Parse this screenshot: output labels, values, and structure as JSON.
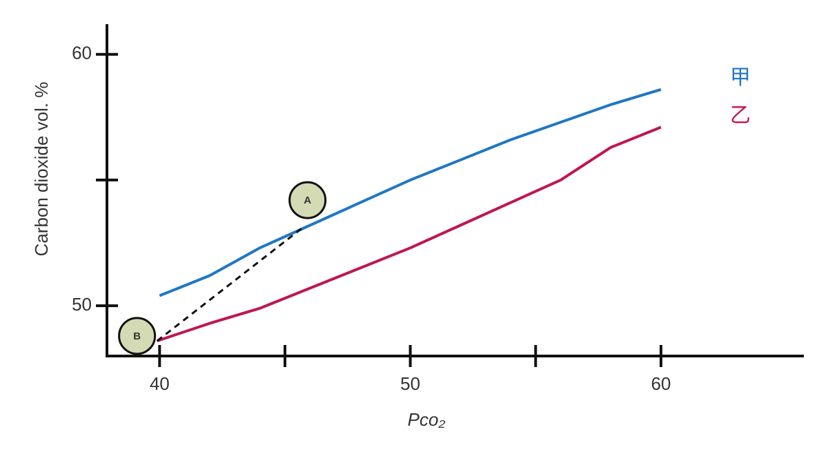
{
  "chart_data": {
    "type": "line",
    "y_label": "Carbon dioxide vol. %",
    "x_label": "Pco₂",
    "xlim": [
      37.9,
      65.7
    ],
    "ylim": [
      48,
      61.2
    ],
    "xticks": [
      40,
      50,
      60
    ],
    "xminorticks": [
      45,
      55
    ],
    "yticks": [
      50,
      60
    ],
    "yminorticks": [
      55
    ],
    "series": [
      {
        "name": "甲",
        "color": "#1f77c4",
        "x": [
          40,
          42,
          44,
          46,
          48,
          50,
          52,
          54,
          56,
          58,
          60
        ],
        "values": [
          50.4,
          51.2,
          52.3,
          53.2,
          54.1,
          55.0,
          55.8,
          56.6,
          57.3,
          58.0,
          58.6
        ]
      },
      {
        "name": "乙",
        "color": "#c0164f",
        "x": [
          39.9,
          42,
          44,
          46,
          48,
          50,
          52,
          54,
          56,
          58,
          60
        ],
        "values": [
          48.6,
          49.3,
          49.9,
          50.7,
          51.5,
          52.3,
          53.2,
          54.1,
          55.0,
          56.3,
          57.1
        ]
      }
    ],
    "dashed_line": {
      "x": [
        39.9,
        45.7
      ],
      "y": [
        48.6,
        53.1
      ]
    },
    "annotations": [
      {
        "label": "A",
        "x": 45.9,
        "y": 54.2
      },
      {
        "label": "B",
        "x": 39.1,
        "y": 48.8
      }
    ]
  }
}
